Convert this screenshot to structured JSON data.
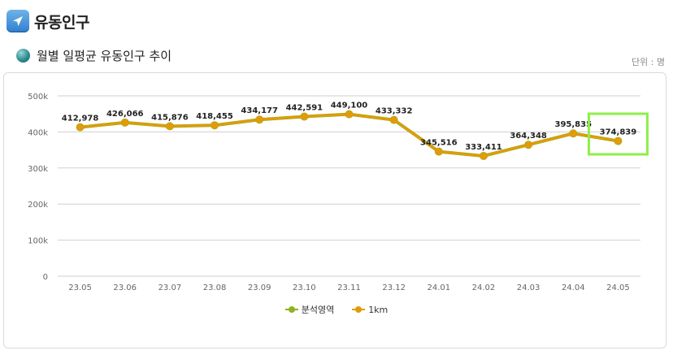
{
  "header": {
    "title": "유동인구",
    "icon": "navigation-arrow-icon"
  },
  "section": {
    "title": "월별 일평균 유동인구 추이",
    "icon": "globe-icon",
    "unit": "단위 : 명"
  },
  "colors": {
    "series_area": "#8fb320",
    "series_1km": "#e39a0a",
    "highlight": "#8df04a",
    "grid": "#cfcfcf"
  },
  "chart_data": {
    "type": "line",
    "title": "",
    "xlabel": "",
    "ylabel": "",
    "x": [
      "23.05",
      "23.06",
      "23.07",
      "23.08",
      "23.09",
      "23.10",
      "23.11",
      "23.12",
      "24.01",
      "24.02",
      "24.03",
      "24.04",
      "24.05"
    ],
    "ylim": [
      0,
      500000
    ],
    "yticks": [
      "0",
      "100k",
      "200k",
      "300k",
      "400k",
      "500k"
    ],
    "grid": true,
    "legend_position": "bottom",
    "series": [
      {
        "name": "분석영역",
        "color": "#8fb320",
        "values": [
          412978,
          426066,
          415876,
          418455,
          434177,
          442591,
          449100,
          433332,
          345516,
          333411,
          364348,
          395835,
          374839
        ]
      },
      {
        "name": "1km",
        "color": "#e39a0a",
        "values": [
          412978,
          426066,
          415876,
          418455,
          434177,
          442591,
          449100,
          433332,
          345516,
          333411,
          364348,
          395835,
          374839
        ]
      }
    ],
    "data_labels": [
      "412,978",
      "426,066",
      "415,876",
      "418,455",
      "434,177",
      "442,591",
      "449,100",
      "433,332",
      "345,516",
      "333,411",
      "364,348",
      "395,835",
      "374,839"
    ],
    "highlighted_category": "24.05"
  }
}
